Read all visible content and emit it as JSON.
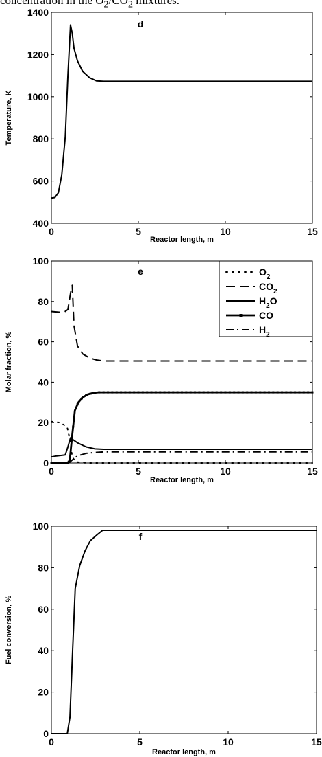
{
  "caption": {
    "text": "concentration in the O",
    "sub1": "2",
    "mid": "/CO",
    "sub2": "2",
    "tail": " mixtures."
  },
  "chart_data": [
    {
      "type": "line",
      "panel_label": "d",
      "xlabel": "Reactor length, m",
      "ylabel": "Temperature, K",
      "xlim": [
        0,
        15
      ],
      "ylim": [
        400,
        1400
      ],
      "xticks": [
        0,
        5,
        10,
        15
      ],
      "yticks": [
        400,
        600,
        800,
        1000,
        1200,
        1400
      ],
      "grid": false,
      "legend": null,
      "series": [
        {
          "style": "solid",
          "x": [
            0,
            0.2,
            0.4,
            0.6,
            0.8,
            0.95,
            1.1,
            1.2,
            1.3,
            1.5,
            1.8,
            2.2,
            2.6,
            3,
            5,
            10,
            15
          ],
          "y": [
            520,
            522,
            545,
            630,
            810,
            1100,
            1340,
            1300,
            1230,
            1170,
            1120,
            1090,
            1075,
            1073,
            1073,
            1073,
            1073
          ]
        }
      ]
    },
    {
      "type": "line",
      "panel_label": "e",
      "xlabel": "Reactor length, m",
      "ylabel": "Molar fraction, %",
      "xlim": [
        0,
        15
      ],
      "ylim": [
        0,
        100
      ],
      "xticks": [
        0,
        5,
        10,
        15
      ],
      "yticks": [
        0,
        20,
        40,
        60,
        80,
        100
      ],
      "grid": false,
      "legend": "top-right",
      "series": [
        {
          "name": "O2",
          "legend": {
            "base": "O",
            "sub": "2"
          },
          "style": "dotted",
          "x": [
            0,
            0.5,
            0.9,
            1.05,
            1.2,
            1.4,
            2,
            5,
            10,
            15
          ],
          "y": [
            20.5,
            20,
            18,
            12,
            3,
            0.5,
            0,
            0,
            0,
            0
          ]
        },
        {
          "name": "CO2",
          "legend": {
            "base": "CO",
            "sub": "2"
          },
          "style": "dashed",
          "x": [
            0,
            0.7,
            0.95,
            1.1,
            1.2,
            1.3,
            1.5,
            1.8,
            2.2,
            2.6,
            3,
            5,
            10,
            15
          ],
          "y": [
            75,
            74.5,
            76,
            84,
            88,
            68,
            58,
            54,
            52,
            51,
            50.5,
            50.5,
            50.5,
            50.5
          ]
        },
        {
          "name": "H2O",
          "legend": {
            "base": "H",
            "sub": "2",
            "after": "O"
          },
          "style": "solid",
          "x": [
            0,
            0.3,
            0.8,
            0.95,
            1.1,
            1.25,
            1.5,
            2,
            2.5,
            3,
            5,
            10,
            15
          ],
          "y": [
            3,
            3.5,
            4,
            8,
            12.5,
            11.5,
            10,
            8,
            7,
            6.8,
            6.8,
            6.8,
            6.8
          ]
        },
        {
          "name": "CO",
          "legend": {
            "base": "CO",
            "sub": "",
            "after": ""
          },
          "style": "solid-thick-marker",
          "x": [
            0,
            0.9,
            1.05,
            1.2,
            1.35,
            1.55,
            1.8,
            2.1,
            2.4,
            2.7,
            3,
            5,
            10,
            15
          ],
          "y": [
            0,
            0,
            1,
            14,
            26,
            30,
            32.5,
            34,
            34.7,
            35,
            35,
            35,
            35,
            35
          ]
        },
        {
          "name": "H2",
          "legend": {
            "base": "H",
            "sub": "2"
          },
          "style": "dashdot",
          "x": [
            0,
            1,
            1.2,
            1.4,
            1.7,
            2,
            2.5,
            3,
            5,
            10,
            15
          ],
          "y": [
            0,
            0,
            1.5,
            3,
            4,
            4.8,
            5.2,
            5.5,
            5.5,
            5.5,
            5.5
          ]
        }
      ]
    },
    {
      "type": "line",
      "panel_label": "f",
      "xlabel": "Reactor length, m",
      "ylabel": "Fuel conversion, %",
      "xlim": [
        0,
        15
      ],
      "ylim": [
        0,
        100
      ],
      "xticks": [
        0,
        5,
        10,
        15
      ],
      "yticks": [
        0,
        20,
        40,
        60,
        80,
        100
      ],
      "grid": false,
      "legend": null,
      "series": [
        {
          "style": "solid",
          "x": [
            0,
            0.9,
            1.05,
            1.2,
            1.35,
            1.6,
            1.9,
            2.2,
            2.6,
            2.9,
            3.2,
            5,
            10,
            15
          ],
          "y": [
            0,
            0,
            8,
            40,
            70,
            81,
            88,
            93,
            96,
            98,
            98,
            98,
            98,
            98
          ]
        }
      ]
    }
  ]
}
